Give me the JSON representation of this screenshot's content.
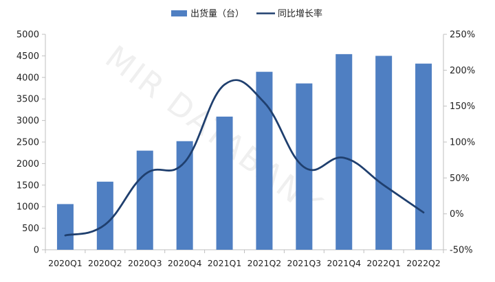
{
  "colors": {
    "bar": "#4f7fc2",
    "line": "#1f3f6e",
    "axis": "#bfbfbf",
    "text": "#222222"
  },
  "watermark": "MIR DATABANK",
  "chart_data": {
    "type": "bar+line",
    "categories": [
      "2020Q1",
      "2020Q2",
      "2020Q3",
      "2020Q4",
      "2021Q1",
      "2021Q2",
      "2021Q3",
      "2021Q4",
      "2022Q1",
      "2022Q2"
    ],
    "series": [
      {
        "name": "出货量（台）",
        "type": "bar",
        "axis": "left",
        "values": [
          1060,
          1580,
          2300,
          2520,
          3090,
          4130,
          3860,
          4540,
          4500,
          4320
        ]
      },
      {
        "name": "同比增长率",
        "type": "line",
        "axis": "right",
        "values": [
          -30,
          -15,
          55,
          72,
          180,
          155,
          65,
          78,
          40,
          2
        ]
      }
    ],
    "y_left": {
      "range": [
        0,
        5000
      ],
      "ticks": [
        "0",
        "500",
        "1000",
        "1500",
        "2000",
        "2500",
        "3000",
        "3500",
        "4000",
        "4500",
        "5000"
      ]
    },
    "y_right": {
      "range": [
        -50,
        250
      ],
      "ticks": [
        "-50%",
        "0%",
        "50%",
        "100%",
        "150%",
        "200%",
        "250%"
      ]
    },
    "legend": {
      "placement": "top-center"
    },
    "grid": false
  }
}
